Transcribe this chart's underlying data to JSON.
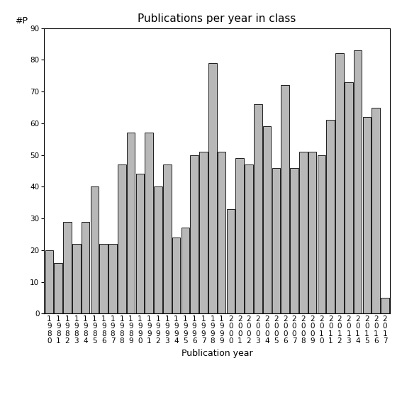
{
  "years": [
    "1980",
    "1981",
    "1982",
    "1983",
    "1984",
    "1985",
    "1986",
    "1987",
    "1988",
    "1989",
    "1990",
    "1991",
    "1992",
    "1993",
    "1994",
    "1995",
    "1996",
    "1997",
    "1998",
    "1999",
    "2000",
    "2001",
    "2002",
    "2003",
    "2004",
    "2005",
    "2006",
    "2007",
    "2008",
    "2009",
    "2010",
    "2011",
    "2012",
    "2013",
    "2014",
    "2015",
    "2016",
    "2017"
  ],
  "values": [
    20,
    16,
    29,
    22,
    29,
    40,
    22,
    22,
    47,
    57,
    44,
    57,
    40,
    47,
    24,
    27,
    50,
    51,
    79,
    51,
    33,
    49,
    47,
    66,
    59,
    46,
    72,
    46,
    51,
    51,
    50,
    61,
    82,
    73,
    83,
    62,
    65,
    5
  ],
  "bar_color": "#b8b8b8",
  "bar_edge_color": "#000000",
  "title": "Publications per year in class",
  "xlabel": "Publication year",
  "ylabel": "#P",
  "ylim": [
    0,
    90
  ],
  "yticks": [
    0,
    10,
    20,
    30,
    40,
    50,
    60,
    70,
    80,
    90
  ],
  "title_fontsize": 11,
  "label_fontsize": 9,
  "tick_fontsize": 7.5,
  "bg_color": "#ffffff"
}
